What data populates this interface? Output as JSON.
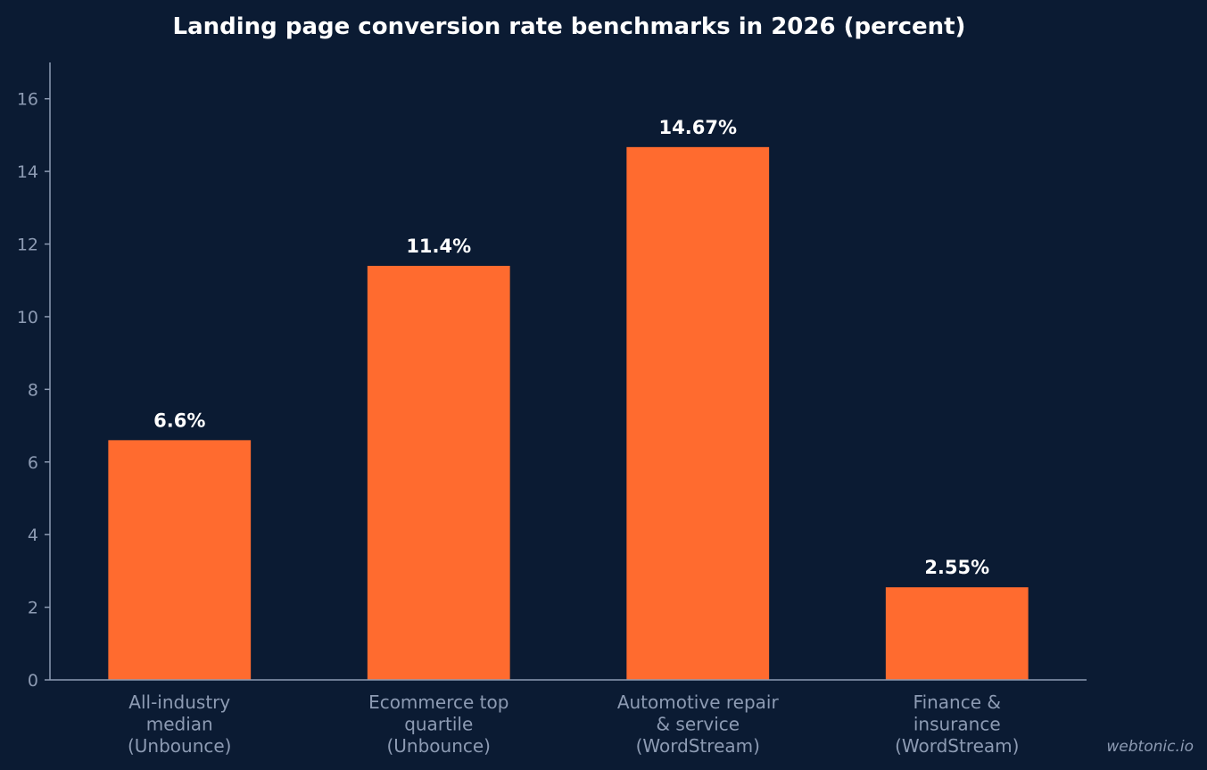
{
  "chart_data": {
    "type": "bar",
    "title": "Landing page conversion rate benchmarks in 2026 (percent)",
    "categories": [
      [
        "All-industry",
        "median",
        "(Unbounce)"
      ],
      [
        "Ecommerce top",
        "quartile",
        "(Unbounce)"
      ],
      [
        "Automotive repair",
        "& service",
        "(WordStream)"
      ],
      [
        "Finance &",
        "insurance",
        "(WordStream)"
      ]
    ],
    "values": [
      6.6,
      11.4,
      14.67,
      2.55
    ],
    "data_labels": [
      "6.6%",
      "11.4%",
      "14.67%",
      "2.55%"
    ],
    "xlabel": "",
    "ylabel": "",
    "ylim": [
      0,
      17
    ],
    "yticks": [
      "0",
      "2",
      "4",
      "6",
      "8",
      "10",
      "12",
      "14",
      "16"
    ],
    "grid": false,
    "bar_color": "#ff6b2f"
  },
  "watermark": "webtonic.io"
}
